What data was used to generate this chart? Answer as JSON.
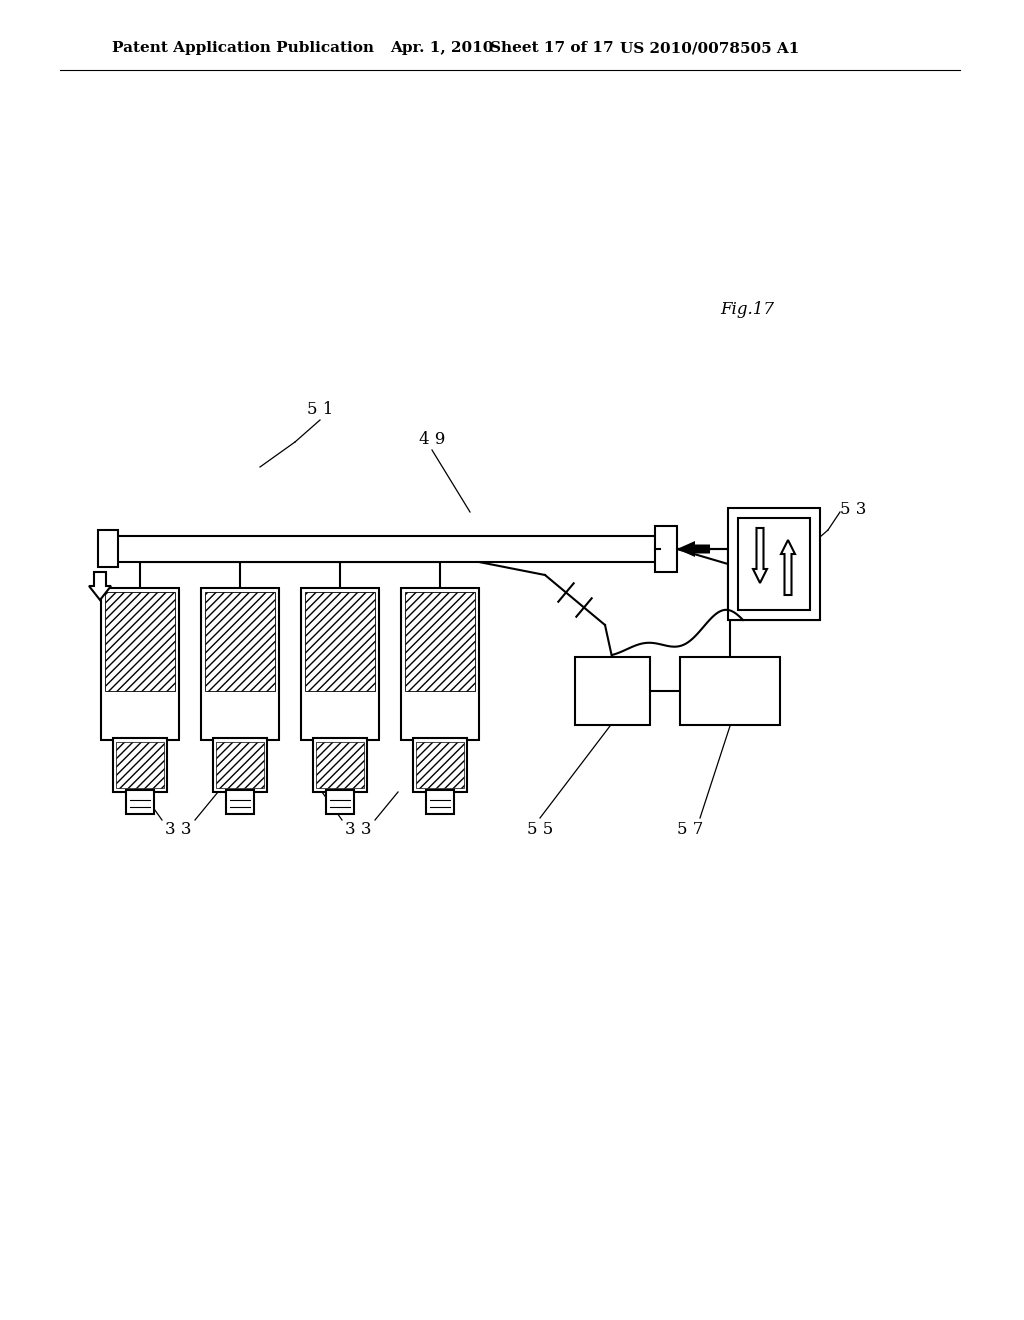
{
  "bg_color": "#ffffff",
  "line_color": "#000000",
  "header_text1": "Patent Application Publication",
  "header_text2": "Apr. 1, 2010",
  "header_text3": "Sheet 17 of 17",
  "header_text4": "US 2010/0078505 A1",
  "fig_label": "Fig.17",
  "label_49": "4 9",
  "label_51": "5 1",
  "label_53": "5 3",
  "label_33a": "3 3",
  "label_33b": "3 3",
  "label_55": "5 5",
  "label_57": "5 7"
}
